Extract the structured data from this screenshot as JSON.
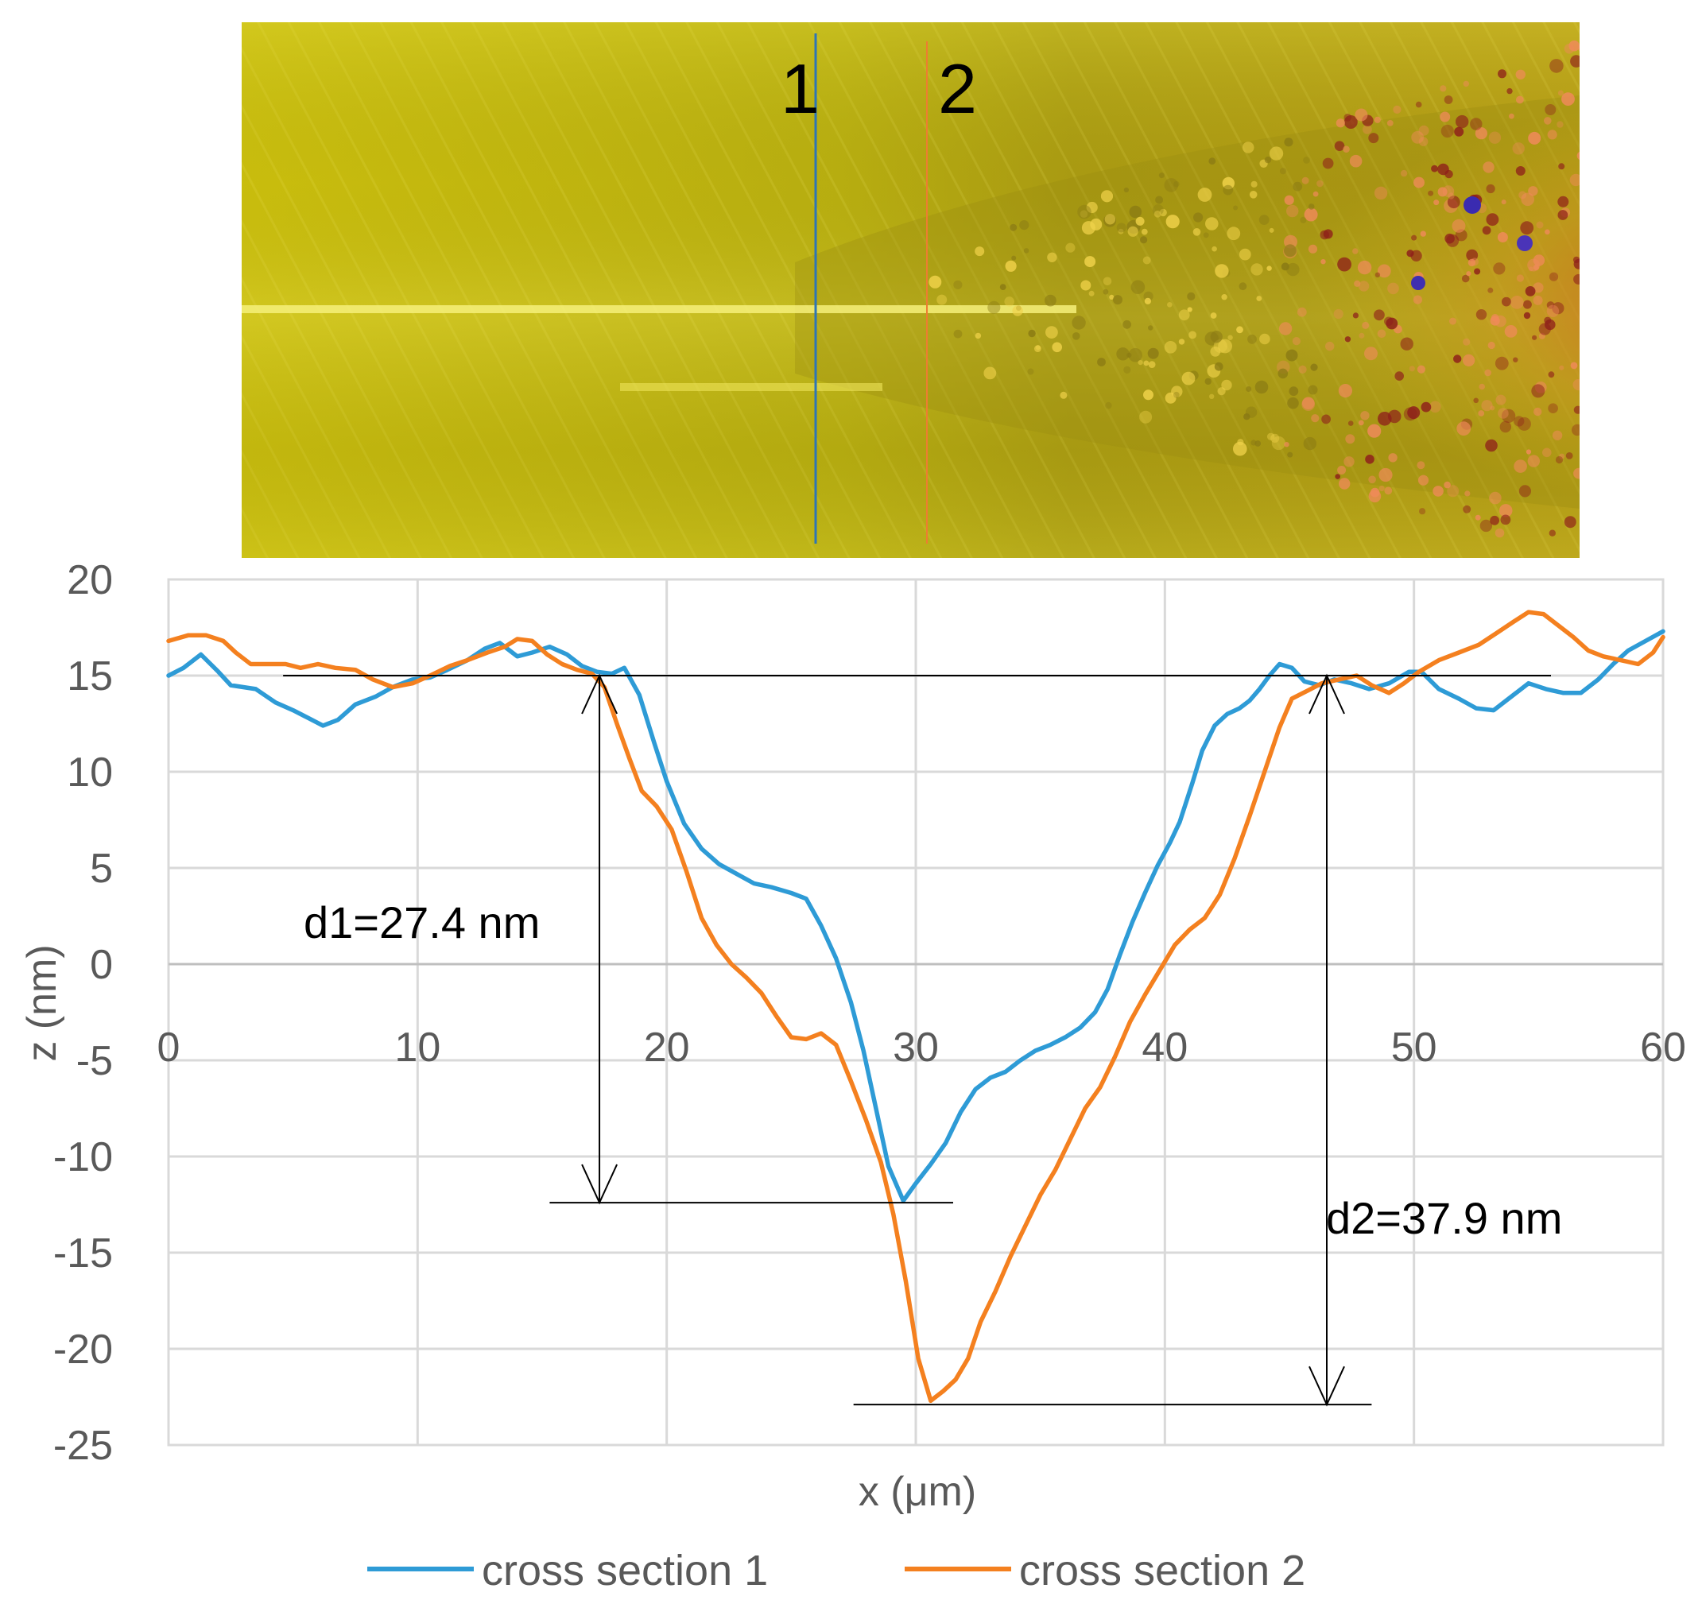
{
  "image_panel": {
    "markers": [
      {
        "label": "1",
        "color": "#2E75B6"
      },
      {
        "label": "2",
        "color": "#ED7D31"
      }
    ]
  },
  "chart_data": {
    "type": "line",
    "title": "",
    "xlabel": "x (μm)",
    "ylabel": "z (nm)",
    "xlim": [
      0,
      60
    ],
    "ylim": [
      -25,
      20
    ],
    "xticks": [
      0,
      10,
      20,
      30,
      40,
      50,
      60
    ],
    "yticks": [
      20,
      15,
      10,
      5,
      0,
      -5,
      -10,
      -15,
      -20,
      -25
    ],
    "grid": true,
    "legend_position": "bottom",
    "series": [
      {
        "name": "cross section 1",
        "color": "#2E9BD6",
        "points": [
          [
            0,
            15.0
          ],
          [
            0.6,
            15.4
          ],
          [
            1.3,
            16.1
          ],
          [
            2,
            15.2
          ],
          [
            2.5,
            14.5
          ],
          [
            3.5,
            14.3
          ],
          [
            4.3,
            13.6
          ],
          [
            5,
            13.2
          ],
          [
            5.6,
            12.8
          ],
          [
            6.2,
            12.4
          ],
          [
            6.8,
            12.7
          ],
          [
            7.5,
            13.5
          ],
          [
            8.3,
            13.9
          ],
          [
            9,
            14.4
          ],
          [
            9.8,
            14.8
          ],
          [
            10.5,
            14.9
          ],
          [
            11.2,
            15.3
          ],
          [
            12,
            15.8
          ],
          [
            12.7,
            16.4
          ],
          [
            13.3,
            16.7
          ],
          [
            14,
            16.0
          ],
          [
            14.6,
            16.2
          ],
          [
            15.3,
            16.5
          ],
          [
            16,
            16.1
          ],
          [
            16.6,
            15.5
          ],
          [
            17.2,
            15.2
          ],
          [
            17.8,
            15.1
          ],
          [
            18.3,
            15.4
          ],
          [
            18.9,
            14.0
          ],
          [
            19.5,
            11.5
          ],
          [
            20,
            9.5
          ],
          [
            20.7,
            7.3
          ],
          [
            21.4,
            6.0
          ],
          [
            22.1,
            5.2
          ],
          [
            22.8,
            4.7
          ],
          [
            23.5,
            4.2
          ],
          [
            24.2,
            4.0
          ],
          [
            25,
            3.7
          ],
          [
            25.6,
            3.4
          ],
          [
            26.2,
            2.0
          ],
          [
            26.8,
            0.3
          ],
          [
            27.4,
            -2.0
          ],
          [
            27.9,
            -4.5
          ],
          [
            28.4,
            -7.5
          ],
          [
            28.9,
            -10.5
          ],
          [
            29.5,
            -12.3
          ],
          [
            30,
            -11.4
          ],
          [
            30.6,
            -10.4
          ],
          [
            31.2,
            -9.3
          ],
          [
            31.8,
            -7.7
          ],
          [
            32.4,
            -6.5
          ],
          [
            33,
            -5.9
          ],
          [
            33.6,
            -5.6
          ],
          [
            34.2,
            -5.0
          ],
          [
            34.8,
            -4.5
          ],
          [
            35.4,
            -4.2
          ],
          [
            36,
            -3.8
          ],
          [
            36.6,
            -3.3
          ],
          [
            37.2,
            -2.5
          ],
          [
            37.7,
            -1.3
          ],
          [
            38.2,
            0.5
          ],
          [
            38.7,
            2.2
          ],
          [
            39.2,
            3.7
          ],
          [
            39.7,
            5.1
          ],
          [
            40.2,
            6.3
          ],
          [
            40.6,
            7.4
          ],
          [
            41.1,
            9.4
          ],
          [
            41.5,
            11.1
          ],
          [
            42,
            12.4
          ],
          [
            42.5,
            13.0
          ],
          [
            43,
            13.3
          ],
          [
            43.4,
            13.7
          ],
          [
            43.8,
            14.3
          ],
          [
            44.2,
            15.0
          ],
          [
            44.6,
            15.6
          ],
          [
            45.1,
            15.4
          ],
          [
            45.6,
            14.7
          ],
          [
            46.2,
            14.5
          ],
          [
            46.8,
            14.8
          ],
          [
            47.5,
            14.6
          ],
          [
            48.2,
            14.3
          ],
          [
            49,
            14.6
          ],
          [
            49.8,
            15.2
          ],
          [
            50.3,
            15.2
          ],
          [
            51,
            14.3
          ],
          [
            51.8,
            13.8
          ],
          [
            52.5,
            13.3
          ],
          [
            53.2,
            13.2
          ],
          [
            54,
            14.0
          ],
          [
            54.6,
            14.6
          ],
          [
            55.3,
            14.3
          ],
          [
            56,
            14.1
          ],
          [
            56.7,
            14.1
          ],
          [
            57.4,
            14.8
          ],
          [
            58,
            15.6
          ],
          [
            58.6,
            16.3
          ],
          [
            59.3,
            16.8
          ],
          [
            60,
            17.3
          ]
        ]
      },
      {
        "name": "cross section 2",
        "color": "#F4801F",
        "points": [
          [
            0,
            16.8
          ],
          [
            0.8,
            17.1
          ],
          [
            1.5,
            17.1
          ],
          [
            2.2,
            16.8
          ],
          [
            2.7,
            16.2
          ],
          [
            3.3,
            15.6
          ],
          [
            4,
            15.6
          ],
          [
            4.7,
            15.6
          ],
          [
            5.3,
            15.4
          ],
          [
            6,
            15.6
          ],
          [
            6.7,
            15.4
          ],
          [
            7.5,
            15.3
          ],
          [
            8.2,
            14.8
          ],
          [
            9,
            14.4
          ],
          [
            9.8,
            14.6
          ],
          [
            10.5,
            15.0
          ],
          [
            11.3,
            15.5
          ],
          [
            12,
            15.8
          ],
          [
            12.8,
            16.2
          ],
          [
            13.5,
            16.5
          ],
          [
            14,
            16.9
          ],
          [
            14.6,
            16.8
          ],
          [
            15.2,
            16.1
          ],
          [
            15.8,
            15.6
          ],
          [
            16.4,
            15.3
          ],
          [
            17,
            15.1
          ],
          [
            17.5,
            14.4
          ],
          [
            18,
            12.5
          ],
          [
            18.5,
            10.7
          ],
          [
            19,
            9.0
          ],
          [
            19.6,
            8.2
          ],
          [
            20.2,
            7.0
          ],
          [
            20.8,
            4.8
          ],
          [
            21.4,
            2.4
          ],
          [
            22,
            1.0
          ],
          [
            22.6,
            0.0
          ],
          [
            23.2,
            -0.7
          ],
          [
            23.8,
            -1.5
          ],
          [
            24.4,
            -2.7
          ],
          [
            25,
            -3.8
          ],
          [
            25.6,
            -3.9
          ],
          [
            26.2,
            -3.6
          ],
          [
            26.8,
            -4.2
          ],
          [
            27.4,
            -6.1
          ],
          [
            28,
            -8.1
          ],
          [
            28.6,
            -10.3
          ],
          [
            29.1,
            -13.0
          ],
          [
            29.6,
            -16.5
          ],
          [
            30.1,
            -20.5
          ],
          [
            30.6,
            -22.7
          ],
          [
            31.1,
            -22.2
          ],
          [
            31.6,
            -21.6
          ],
          [
            32.1,
            -20.5
          ],
          [
            32.6,
            -18.6
          ],
          [
            33.2,
            -17.0
          ],
          [
            33.8,
            -15.2
          ],
          [
            34.4,
            -13.6
          ],
          [
            35,
            -12.0
          ],
          [
            35.6,
            -10.7
          ],
          [
            36.2,
            -9.1
          ],
          [
            36.8,
            -7.5
          ],
          [
            37.4,
            -6.4
          ],
          [
            38,
            -4.8
          ],
          [
            38.6,
            -3.0
          ],
          [
            39.2,
            -1.6
          ],
          [
            39.8,
            -0.3
          ],
          [
            40.4,
            1.0
          ],
          [
            41,
            1.8
          ],
          [
            41.6,
            2.4
          ],
          [
            42.2,
            3.6
          ],
          [
            42.8,
            5.5
          ],
          [
            43.4,
            7.7
          ],
          [
            44,
            10.0
          ],
          [
            44.6,
            12.3
          ],
          [
            45.1,
            13.8
          ],
          [
            45.7,
            14.2
          ],
          [
            46.3,
            14.6
          ],
          [
            47,
            14.8
          ],
          [
            47.7,
            15.0
          ],
          [
            48.3,
            14.5
          ],
          [
            49,
            14.1
          ],
          [
            49.6,
            14.6
          ],
          [
            50.2,
            15.2
          ],
          [
            51,
            15.8
          ],
          [
            51.8,
            16.2
          ],
          [
            52.6,
            16.6
          ],
          [
            53.3,
            17.2
          ],
          [
            54,
            17.8
          ],
          [
            54.6,
            18.3
          ],
          [
            55.2,
            18.2
          ],
          [
            55.8,
            17.6
          ],
          [
            56.4,
            17.0
          ],
          [
            57,
            16.3
          ],
          [
            57.6,
            16.0
          ],
          [
            58.3,
            15.8
          ],
          [
            59,
            15.6
          ],
          [
            59.6,
            16.2
          ],
          [
            60,
            17.0
          ]
        ]
      }
    ],
    "annotations": [
      {
        "label": "d1=27.4 nm",
        "value": 27.4,
        "unit": "nm",
        "x": 17.3,
        "z_top": 15.0,
        "z_bottom": -12.4
      },
      {
        "label": "d2=37.9 nm",
        "value": 37.9,
        "unit": "nm",
        "x": 46.5,
        "z_top": 15.0,
        "z_bottom": -22.9
      }
    ],
    "reference_lines": [
      {
        "z": 15.0,
        "x_from": 4.6,
        "x_to": 55.5
      },
      {
        "z": -12.4,
        "x_from": 15.3,
        "x_to": 31.5
      },
      {
        "z": -22.9,
        "x_from": 27.5,
        "x_to": 48.3
      }
    ]
  }
}
